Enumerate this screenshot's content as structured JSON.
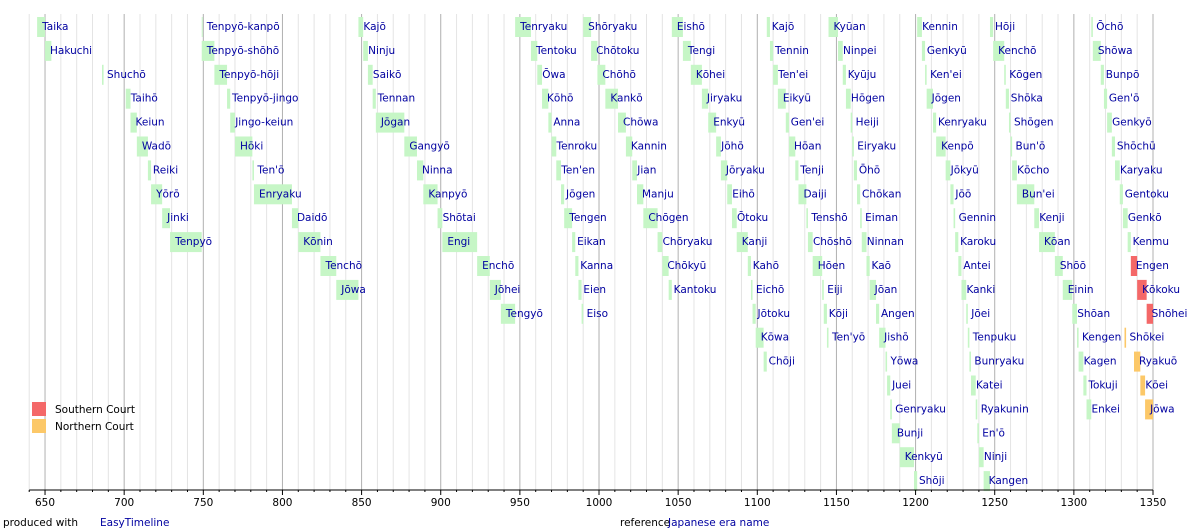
{
  "chart_data": {
    "type": "timeline",
    "xlim": [
      640,
      1350
    ],
    "xticks": [
      650,
      700,
      750,
      800,
      850,
      900,
      950,
      1000,
      1050,
      1100,
      1150,
      1200,
      1250,
      1300,
      1350
    ],
    "minor_xticks": [
      640,
      660,
      670,
      680,
      690,
      710,
      720,
      730,
      740,
      760,
      770,
      780,
      790,
      810,
      820,
      830,
      840,
      860,
      870,
      880,
      890,
      910,
      920,
      930,
      940,
      960,
      970,
      980,
      990,
      1010,
      1020,
      1030,
      1040,
      1060,
      1070,
      1080,
      1090,
      1110,
      1120,
      1130,
      1140,
      1160,
      1170,
      1180,
      1190,
      1210,
      1220,
      1230,
      1240,
      1260,
      1270,
      1280,
      1290,
      1310,
      1320,
      1330,
      1340
    ],
    "grid": true,
    "color": "#c6f6c6",
    "legend_position": "lower left",
    "legend": [
      {
        "name": "Southern Court",
        "color": "#f46868"
      },
      {
        "name": "Northern Court",
        "color": "#fcc868"
      }
    ],
    "groups": [
      [
        {
          "name": "Taika",
          "start": 645,
          "end": 650
        },
        {
          "name": "Hakuchi",
          "start": 650,
          "end": 654
        },
        {
          "name": "Shuchō",
          "start": 686,
          "end": 687
        },
        {
          "name": "Taihō",
          "start": 701,
          "end": 704
        },
        {
          "name": "Keiun",
          "start": 704,
          "end": 708
        },
        {
          "name": "Wadō",
          "start": 708,
          "end": 715
        },
        {
          "name": "Reiki",
          "start": 715,
          "end": 717
        },
        {
          "name": "Yōrō",
          "start": 717,
          "end": 724
        },
        {
          "name": "Jinki",
          "start": 724,
          "end": 729
        },
        {
          "name": "Tenpyō",
          "start": 729,
          "end": 749
        }
      ],
      [
        {
          "name": "Tenpyō-kanpō",
          "start": 749,
          "end": 749
        },
        {
          "name": "Tenpyō-shōhō",
          "start": 749,
          "end": 757
        },
        {
          "name": "Tenpyō-hōji",
          "start": 757,
          "end": 765
        },
        {
          "name": "Tenpyō-jingo",
          "start": 765,
          "end": 767
        },
        {
          "name": "Jingo-keiun",
          "start": 767,
          "end": 770
        },
        {
          "name": "Hōki",
          "start": 770,
          "end": 781
        },
        {
          "name": "Ten'ō",
          "start": 781,
          "end": 782
        },
        {
          "name": "Enryaku",
          "start": 782,
          "end": 806
        },
        {
          "name": "Daidō",
          "start": 806,
          "end": 810
        },
        {
          "name": "Kōnin",
          "start": 810,
          "end": 824
        },
        {
          "name": "Tenchō",
          "start": 824,
          "end": 834
        },
        {
          "name": "Jōwa",
          "start": 834,
          "end": 848
        }
      ],
      [
        {
          "name": "Kajō",
          "start": 848,
          "end": 851
        },
        {
          "name": "Ninju",
          "start": 851,
          "end": 854
        },
        {
          "name": "Saikō",
          "start": 854,
          "end": 857
        },
        {
          "name": "Tennan",
          "start": 857,
          "end": 859
        },
        {
          "name": "Jōgan",
          "start": 859,
          "end": 877
        },
        {
          "name": "Gangyō",
          "start": 877,
          "end": 885
        },
        {
          "name": "Ninna",
          "start": 885,
          "end": 889
        },
        {
          "name": "Kanpyō",
          "start": 889,
          "end": 898
        },
        {
          "name": "Shōtai",
          "start": 898,
          "end": 901
        },
        {
          "name": "Engi",
          "start": 901,
          "end": 923
        },
        {
          "name": "Enchō",
          "start": 923,
          "end": 931
        },
        {
          "name": "Jōhei",
          "start": 931,
          "end": 938
        },
        {
          "name": "Tengyō",
          "start": 938,
          "end": 947
        }
      ],
      [
        {
          "name": "Tenryaku",
          "start": 947,
          "end": 957
        },
        {
          "name": "Tentoku",
          "start": 957,
          "end": 961
        },
        {
          "name": "Ōwa",
          "start": 961,
          "end": 964
        },
        {
          "name": "Kōhō",
          "start": 964,
          "end": 968
        },
        {
          "name": "Anna",
          "start": 968,
          "end": 970
        },
        {
          "name": "Tenroku",
          "start": 970,
          "end": 973
        },
        {
          "name": "Ten'en",
          "start": 973,
          "end": 976
        },
        {
          "name": "Jōgen",
          "start": 976,
          "end": 978
        },
        {
          "name": "Tengen",
          "start": 978,
          "end": 983
        },
        {
          "name": "Eikan",
          "start": 983,
          "end": 985
        },
        {
          "name": "Kanna",
          "start": 985,
          "end": 987
        },
        {
          "name": "Eien",
          "start": 987,
          "end": 989
        },
        {
          "name": "Eiso",
          "start": 989,
          "end": 990
        }
      ],
      [
        {
          "name": "Shōryaku",
          "start": 990,
          "end": 995
        },
        {
          "name": "Chōtoku",
          "start": 995,
          "end": 999
        },
        {
          "name": "Chōhō",
          "start": 999,
          "end": 1004
        },
        {
          "name": "Kankō",
          "start": 1004,
          "end": 1012
        },
        {
          "name": "Chōwa",
          "start": 1012,
          "end": 1017
        },
        {
          "name": "Kannin",
          "start": 1017,
          "end": 1021
        },
        {
          "name": "Jian",
          "start": 1021,
          "end": 1024
        },
        {
          "name": "Manju",
          "start": 1024,
          "end": 1028
        },
        {
          "name": "Chōgen",
          "start": 1028,
          "end": 1037
        },
        {
          "name": "Chōryaku",
          "start": 1037,
          "end": 1040
        },
        {
          "name": "Chōkyū",
          "start": 1040,
          "end": 1044
        },
        {
          "name": "Kantoku",
          "start": 1044,
          "end": 1046
        }
      ],
      [
        {
          "name": "Eishō",
          "start": 1046,
          "end": 1053
        },
        {
          "name": "Tengi",
          "start": 1053,
          "end": 1058
        },
        {
          "name": "Kōhei",
          "start": 1058,
          "end": 1065
        },
        {
          "name": "Jiryaku",
          "start": 1065,
          "end": 1069
        },
        {
          "name": "Enkyū",
          "start": 1069,
          "end": 1074
        },
        {
          "name": "Jōhō",
          "start": 1074,
          "end": 1077
        },
        {
          "name": "Jōryaku",
          "start": 1077,
          "end": 1081
        },
        {
          "name": "Eihō",
          "start": 1081,
          "end": 1084
        },
        {
          "name": "Ōtoku",
          "start": 1084,
          "end": 1087
        },
        {
          "name": "Kanji",
          "start": 1087,
          "end": 1094
        },
        {
          "name": "Kahō",
          "start": 1094,
          "end": 1096
        },
        {
          "name": "Eichō",
          "start": 1096,
          "end": 1097
        },
        {
          "name": "Jōtoku",
          "start": 1097,
          "end": 1099
        },
        {
          "name": "Kōwa",
          "start": 1099,
          "end": 1104
        },
        {
          "name": "Chōji",
          "start": 1104,
          "end": 1106
        }
      ],
      [
        {
          "name": "Kajō",
          "start": 1106,
          "end": 1108
        },
        {
          "name": "Tennin",
          "start": 1108,
          "end": 1110
        },
        {
          "name": "Ten'ei",
          "start": 1110,
          "end": 1113
        },
        {
          "name": "Eikyū",
          "start": 1113,
          "end": 1118
        },
        {
          "name": "Gen'ei",
          "start": 1118,
          "end": 1120
        },
        {
          "name": "Hōan",
          "start": 1120,
          "end": 1124
        },
        {
          "name": "Tenji",
          "start": 1124,
          "end": 1126
        },
        {
          "name": "Daiji",
          "start": 1126,
          "end": 1131
        },
        {
          "name": "Tenshō",
          "start": 1131,
          "end": 1132
        },
        {
          "name": "Chōshō",
          "start": 1132,
          "end": 1135
        },
        {
          "name": "Hōen",
          "start": 1135,
          "end": 1141
        },
        {
          "name": "Eiji",
          "start": 1141,
          "end": 1142
        },
        {
          "name": "Kōji",
          "start": 1142,
          "end": 1144
        },
        {
          "name": "Ten'yō",
          "start": 1144,
          "end": 1145
        }
      ],
      [
        {
          "name": "Kyūan",
          "start": 1145,
          "end": 1151
        },
        {
          "name": "Ninpei",
          "start": 1151,
          "end": 1154
        },
        {
          "name": "Kyūju",
          "start": 1154,
          "end": 1156
        },
        {
          "name": "Hōgen",
          "start": 1156,
          "end": 1159
        },
        {
          "name": "Heiji",
          "start": 1159,
          "end": 1160
        },
        {
          "name": "Eiryaku",
          "start": 1160,
          "end": 1161
        },
        {
          "name": "Ōhō",
          "start": 1161,
          "end": 1163
        },
        {
          "name": "Chōkan",
          "start": 1163,
          "end": 1165
        },
        {
          "name": "Eiman",
          "start": 1165,
          "end": 1166
        },
        {
          "name": "Ninnan",
          "start": 1166,
          "end": 1169
        },
        {
          "name": "Kaō",
          "start": 1169,
          "end": 1171
        },
        {
          "name": "Jōan",
          "start": 1171,
          "end": 1175
        },
        {
          "name": "Angen",
          "start": 1175,
          "end": 1177
        },
        {
          "name": "Jishō",
          "start": 1177,
          "end": 1181
        },
        {
          "name": "Yōwa",
          "start": 1181,
          "end": 1182
        },
        {
          "name": "Juei",
          "start": 1182,
          "end": 1184
        },
        {
          "name": "Genryaku",
          "start": 1184,
          "end": 1185
        },
        {
          "name": "Bunji",
          "start": 1185,
          "end": 1190
        },
        {
          "name": "Kenkyū",
          "start": 1190,
          "end": 1199
        },
        {
          "name": "Shōji",
          "start": 1199,
          "end": 1201
        }
      ],
      [
        {
          "name": "Kennin",
          "start": 1201,
          "end": 1204
        },
        {
          "name": "Genkyū",
          "start": 1204,
          "end": 1206
        },
        {
          "name": "Ken'ei",
          "start": 1206,
          "end": 1207
        },
        {
          "name": "Jōgen",
          "start": 1207,
          "end": 1211
        },
        {
          "name": "Kenryaku",
          "start": 1211,
          "end": 1213
        },
        {
          "name": "Kenpō",
          "start": 1213,
          "end": 1219
        },
        {
          "name": "Jōkyū",
          "start": 1219,
          "end": 1222
        },
        {
          "name": "Jōō",
          "start": 1222,
          "end": 1224
        },
        {
          "name": "Gennin",
          "start": 1224,
          "end": 1225
        },
        {
          "name": "Karoku",
          "start": 1225,
          "end": 1227
        },
        {
          "name": "Antei",
          "start": 1227,
          "end": 1229
        },
        {
          "name": "Kanki",
          "start": 1229,
          "end": 1232
        },
        {
          "name": "Jōei",
          "start": 1232,
          "end": 1233
        },
        {
          "name": "Tenpuku",
          "start": 1233,
          "end": 1234
        },
        {
          "name": "Bunryaku",
          "start": 1234,
          "end": 1235
        },
        {
          "name": "Katei",
          "start": 1235,
          "end": 1238
        },
        {
          "name": "Ryakunin",
          "start": 1238,
          "end": 1239
        },
        {
          "name": "En'ō",
          "start": 1239,
          "end": 1240
        },
        {
          "name": "Ninji",
          "start": 1240,
          "end": 1243
        },
        {
          "name": "Kangen",
          "start": 1243,
          "end": 1247
        }
      ],
      [
        {
          "name": "Hōji",
          "start": 1247,
          "end": 1249
        },
        {
          "name": "Kenchō",
          "start": 1249,
          "end": 1256
        },
        {
          "name": "Kōgen",
          "start": 1256,
          "end": 1257
        },
        {
          "name": "Shōka",
          "start": 1257,
          "end": 1259
        },
        {
          "name": "Shōgen",
          "start": 1259,
          "end": 1260
        },
        {
          "name": "Bun'ō",
          "start": 1260,
          "end": 1261
        },
        {
          "name": "Kōcho",
          "start": 1261,
          "end": 1264
        },
        {
          "name": "Bun'ei",
          "start": 1264,
          "end": 1275
        },
        {
          "name": "Kenji",
          "start": 1275,
          "end": 1278
        },
        {
          "name": "Kōan",
          "start": 1278,
          "end": 1288
        },
        {
          "name": "Shōō",
          "start": 1288,
          "end": 1293
        },
        {
          "name": "Einin",
          "start": 1293,
          "end": 1299
        },
        {
          "name": "Shōan",
          "start": 1299,
          "end": 1302
        },
        {
          "name": "Kengen",
          "start": 1302,
          "end": 1303
        },
        {
          "name": "Kagen",
          "start": 1303,
          "end": 1306
        },
        {
          "name": "Tokuji",
          "start": 1306,
          "end": 1308
        },
        {
          "name": "Enkei",
          "start": 1308,
          "end": 1311
        }
      ],
      [
        {
          "name": "Ōchō",
          "start": 1311,
          "end": 1312
        },
        {
          "name": "Shōwa",
          "start": 1312,
          "end": 1317
        },
        {
          "name": "Bunpō",
          "start": 1317,
          "end": 1319
        },
        {
          "name": "Gen'ō",
          "start": 1319,
          "end": 1321
        },
        {
          "name": "Genkyō",
          "start": 1321,
          "end": 1324
        },
        {
          "name": "Shōchū",
          "start": 1324,
          "end": 1326
        },
        {
          "name": "Karyaku",
          "start": 1326,
          "end": 1329
        },
        {
          "name": "Gentoku",
          "start": 1329,
          "end": 1331
        },
        {
          "name": "Genkō",
          "start": 1331,
          "end": 1334
        },
        {
          "name": "Kenmu",
          "start": 1334,
          "end": 1336
        },
        {
          "name": "Engen",
          "start": 1336,
          "end": 1340,
          "court": "Southern Court"
        },
        {
          "name": "Kōkoku",
          "start": 1340,
          "end": 1346,
          "court": "Southern Court"
        },
        {
          "name": "Shōhei",
          "start": 1346,
          "end": 1350,
          "court": "Southern Court"
        },
        {
          "name": "Shōkei",
          "start": 1332,
          "end": 1333,
          "court": "Northern Court"
        },
        {
          "name": "Ryakuō",
          "start": 1338,
          "end": 1342,
          "court": "Northern Court"
        },
        {
          "name": "Kōei",
          "start": 1342,
          "end": 1345,
          "court": "Northern Court"
        },
        {
          "name": "Jōwa",
          "start": 1345,
          "end": 1350,
          "court": "Northern Court"
        }
      ]
    ]
  },
  "footer": {
    "credit_label": "produced with",
    "credit_link": "EasyTimeline",
    "reference_label": "reference",
    "reference_link": "Japanese era name"
  }
}
